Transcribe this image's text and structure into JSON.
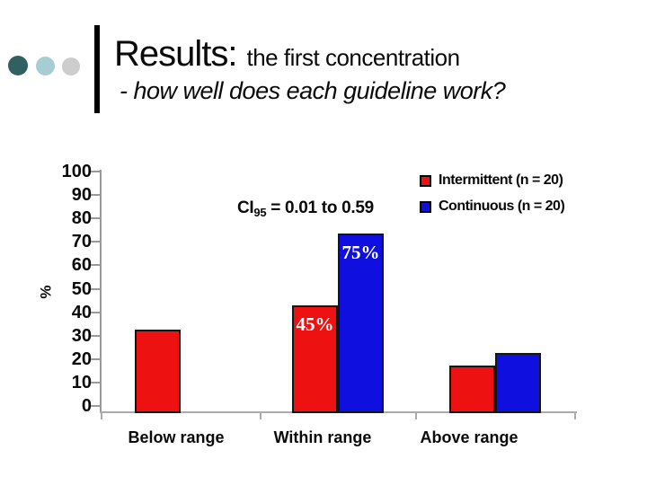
{
  "header": {
    "title_main": "Results:",
    "title_secondary": "the first concentration",
    "subtitle": "- how well does each guideline work?",
    "bullet_colors": [
      "#306062",
      "#a6ced2",
      "#cdcdcd"
    ]
  },
  "chart_data": {
    "type": "bar",
    "categories": [
      "Below range",
      "Within range",
      "Above range"
    ],
    "series": [
      {
        "name": "Intermittent (n = 20)",
        "color": "#ee1111",
        "values": [
          35,
          45,
          20
        ]
      },
      {
        "name": "Continuous (n = 20)",
        "color": "#0f10e0",
        "values": [
          0,
          75,
          25
        ]
      }
    ],
    "ylabel": "%",
    "ylim": [
      0,
      100
    ],
    "ytick_step": 10,
    "grid": false,
    "legend_position": "top-right",
    "annotation": {
      "prefix": "CI",
      "subscript": "95",
      "suffix": " = 0.01 to 0.59"
    },
    "bar_labels": [
      {
        "text": "45%",
        "series_index": 0,
        "category_index": 1,
        "color": "#ffffff"
      },
      {
        "text": "75%",
        "series_index": 1,
        "category_index": 1,
        "color": "#ffffff"
      }
    ]
  }
}
